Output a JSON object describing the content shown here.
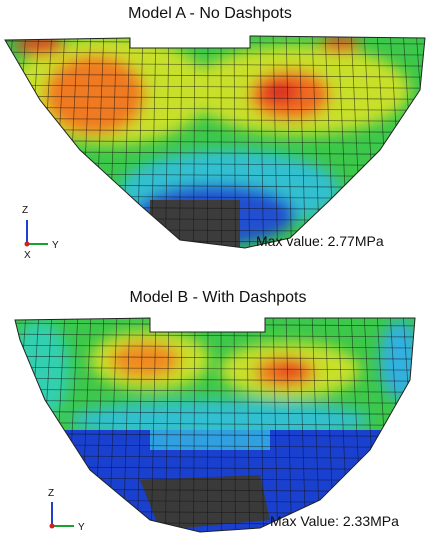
{
  "panels": [
    {
      "title": "Model A - No Dashpots",
      "max_label": "Max value: 2.77MPa",
      "axes": {
        "z": "Z",
        "y": "Y",
        "x": "X"
      }
    },
    {
      "title": "Model B - With Dashpots",
      "max_label": "Max Value: 2.33MPa",
      "axes": {
        "z": "Z",
        "y": "Y"
      }
    }
  ]
}
